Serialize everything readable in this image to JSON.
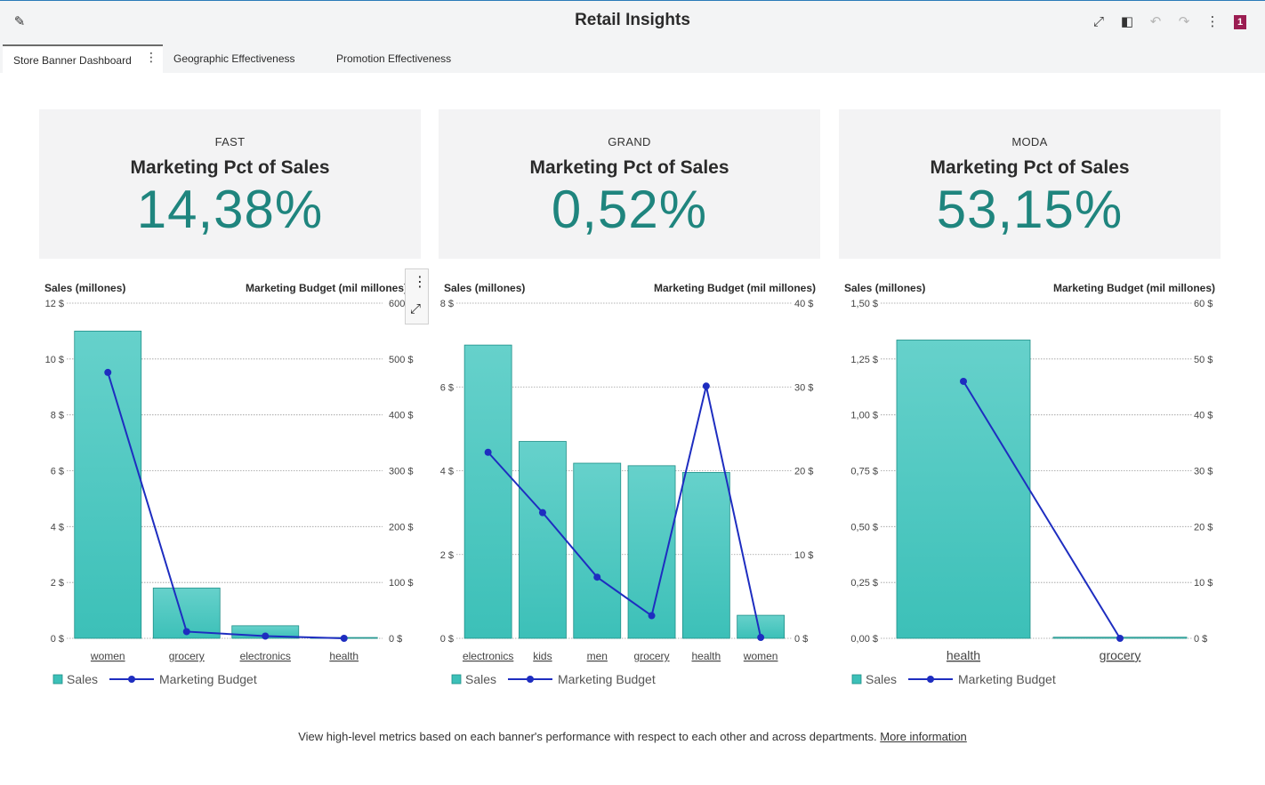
{
  "app": {
    "title": "Retail Insights",
    "badge": "1"
  },
  "tabs": [
    {
      "label": "Store Banner Dashboard",
      "active": true
    },
    {
      "label": "Geographic Effectiveness",
      "active": false
    },
    {
      "label": "Promotion Effectiveness",
      "active": false
    }
  ],
  "kpis": [
    {
      "category": "FAST",
      "title": "Marketing Pct of Sales",
      "value": "14,38%"
    },
    {
      "category": "GRAND",
      "title": "Marketing Pct of Sales",
      "value": "0,52%"
    },
    {
      "category": "MODA",
      "title": "Marketing Pct of Sales",
      "value": "53,15%"
    }
  ],
  "colors": {
    "bar": "#3cc0b8",
    "line": "#1e2dc0",
    "kpi_value": "#1f857e",
    "badge": "#9b1d52"
  },
  "chart_data": [
    {
      "type": "bar",
      "ylabel": "Sales (millones)",
      "y2label": "Marketing Budget (mil millones)",
      "categories": [
        "women",
        "grocery",
        "electronics",
        "health"
      ],
      "ylim": [
        0,
        12
      ],
      "y2lim": [
        0,
        600
      ],
      "yticks": [
        "0 $",
        "2 $",
        "4 $",
        "6 $",
        "8 $",
        "10 $",
        "12 $"
      ],
      "y2ticks": [
        "0 $",
        "100 $",
        "200 $",
        "300 $",
        "400 $",
        "500 $",
        "600 $"
      ],
      "series": [
        {
          "name": "Sales",
          "type": "bar",
          "values": [
            11.0,
            1.8,
            0.45,
            0.03
          ]
        },
        {
          "name": "Marketing Budget",
          "type": "line",
          "axis": "right",
          "values": [
            476,
            12,
            4,
            0
          ]
        }
      ],
      "legend": "bottom-left"
    },
    {
      "type": "bar",
      "ylabel": "Sales (millones)",
      "y2label": "Marketing Budget (mil millones)",
      "categories": [
        "electronics",
        "kids",
        "men",
        "grocery",
        "health",
        "women"
      ],
      "ylim": [
        0,
        8
      ],
      "y2lim": [
        0,
        40
      ],
      "yticks": [
        "0 $",
        "2 $",
        "4 $",
        "6 $",
        "8 $"
      ],
      "y2ticks": [
        "0 $",
        "10 $",
        "20 $",
        "30 $",
        "40 $"
      ],
      "series": [
        {
          "name": "Sales",
          "type": "bar",
          "values": [
            7.0,
            4.7,
            4.18,
            4.12,
            3.96,
            0.55
          ]
        },
        {
          "name": "Marketing Budget",
          "type": "line",
          "axis": "right",
          "values": [
            22.2,
            15.0,
            7.3,
            2.7,
            30.1,
            0.1
          ]
        }
      ],
      "legend": "bottom-left"
    },
    {
      "type": "bar",
      "ylabel": "Sales (millones)",
      "y2label": "Marketing Budget (mil millones)",
      "categories": [
        "health",
        "grocery"
      ],
      "ylim": [
        0,
        1.5
      ],
      "y2lim": [
        0,
        60
      ],
      "yticks": [
        "0,00 $",
        "0,25 $",
        "0,50 $",
        "0,75 $",
        "1,00 $",
        "1,25 $",
        "1,50 $"
      ],
      "y2ticks": [
        "0 $",
        "10 $",
        "20 $",
        "30 $",
        "40 $",
        "50 $",
        "60 $"
      ],
      "series": [
        {
          "name": "Sales",
          "type": "bar",
          "values": [
            1.335,
            0.005
          ]
        },
        {
          "name": "Marketing Budget",
          "type": "line",
          "axis": "right",
          "values": [
            46.0,
            0
          ]
        }
      ],
      "legend": "bottom-left"
    }
  ],
  "footer": {
    "text": "View high-level metrics based on each banner's performance with respect to each other and across departments. ",
    "link": "More information"
  }
}
